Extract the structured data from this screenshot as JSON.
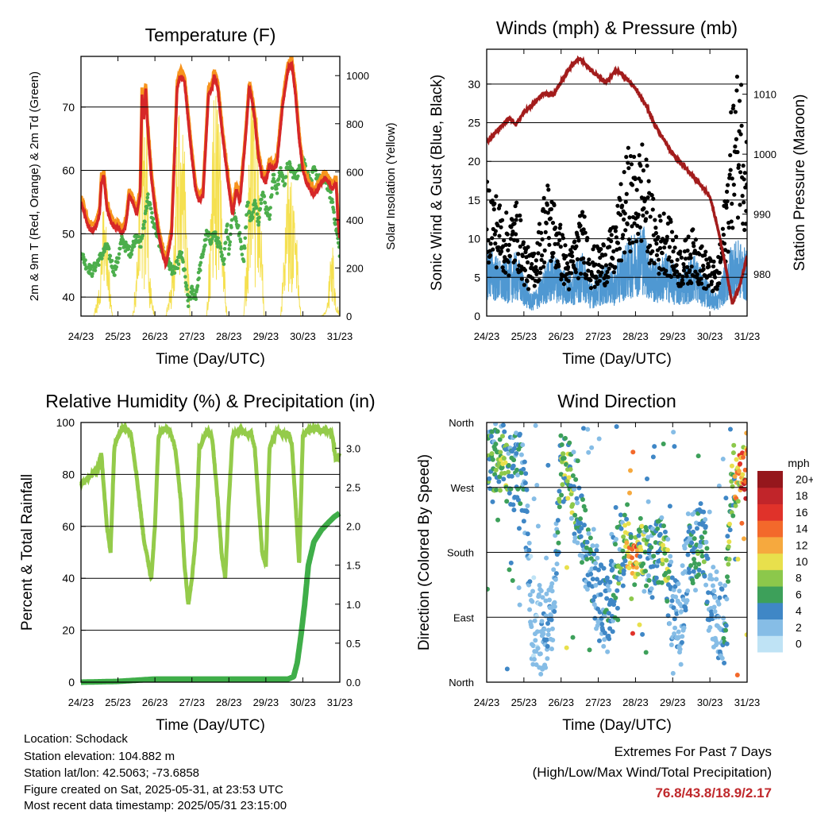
{
  "panels": {
    "temperature": {
      "title": "Temperature (F)",
      "xlabel": "Time (Day/UTC)",
      "ylabel_left": "2m & 9m T (Red, Orange) & 2m Td (Green)",
      "ylabel_right": "Solar Insolation (Yellow)"
    },
    "wind": {
      "title": "Winds (mph) & Pressure (mb)",
      "xlabel": "Time (Day/UTC)",
      "ylabel_left": "Sonic Wind & Gust (Blue, Black)",
      "ylabel_right": "Station Pressure (Maroon)"
    },
    "humidity": {
      "title": "Relative Humidity (%) & Precipitation (in)",
      "xlabel": "Time (Day/UTC)",
      "ylabel_left": "Percent & Total Rainfall"
    },
    "direction": {
      "title": "Wind Direction",
      "xlabel": "Time (Day/UTC)",
      "ylabel_left": "Direction (Colored By Speed)",
      "colorbar_title": "mph"
    }
  },
  "station": {
    "location": "Location: Schodack",
    "elevation": "Station elevation: 104.882 m",
    "latlon": "Station lat/lon: 42.5063; -73.6858",
    "created": "Figure created on Sat, 2025-05-31, at 23:53 UTC",
    "recent": "Most recent data timestamp: 2025/05/31 23:15:00"
  },
  "extremes": {
    "line1": "Extremes For Past 7 Days",
    "line2": "(High/Low/Max Wind/Total Precipitation)",
    "values": "76.8/43.8/18.9/2.17"
  },
  "colors": {
    "temp2m": "#d62728",
    "temp9m": "#f7941d",
    "dewpoint": "#4cae4c",
    "solar": "#f5e050",
    "gust": "#000000",
    "wind": "#4f98d2",
    "pressure": "#a31c1c",
    "rh": "#94cb4a",
    "rain": "#3fae49"
  },
  "chart_data": [
    {
      "type": "line",
      "title": "Temperature (F)",
      "xlabel": "Time (Day/UTC)",
      "ylabel": "2m & 9m T (Red, Orange) & 2m Td (Green)",
      "y2label": "Solar Insolation (Yellow)",
      "x_ticks": [
        "24/23",
        "25/23",
        "26/23",
        "27/23",
        "28/23",
        "29/23",
        "30/23",
        "31/23"
      ],
      "ylim": [
        37,
        78
      ],
      "y_ticks": [
        40,
        50,
        60,
        70
      ],
      "y2lim": [
        0,
        1080
      ],
      "y2_ticks": [
        0,
        200,
        400,
        600,
        800,
        1000
      ],
      "grid": "horizontal",
      "series": [
        {
          "name": "2m & 9m T (Red, Orange)",
          "axis": "left",
          "x": [
            0,
            0.1,
            0.2,
            0.3,
            0.4,
            0.5,
            0.55,
            0.62,
            0.7,
            0.8,
            0.9,
            1.0,
            1.1,
            1.2,
            1.25,
            1.3,
            1.4,
            1.5,
            1.6,
            1.65,
            1.7,
            1.75,
            1.8,
            1.9,
            2.0,
            2.1,
            2.2,
            2.3,
            2.45,
            2.55,
            2.6,
            2.7,
            2.8,
            2.9,
            3.0,
            3.1,
            3.2,
            3.3,
            3.45,
            3.55,
            3.6,
            3.7,
            3.8,
            3.9,
            4.0,
            4.1,
            4.2,
            4.3,
            4.45,
            4.55,
            4.6,
            4.7,
            4.8,
            4.9,
            5.0,
            5.1,
            5.2,
            5.3,
            5.45,
            5.55,
            5.6,
            5.7,
            5.8,
            5.9,
            6.0,
            6.1,
            6.2,
            6.3,
            6.4,
            6.5,
            6.6,
            6.7,
            6.8,
            6.9,
            6.95,
            7.0
          ],
          "y": [
            55,
            53,
            51,
            50.5,
            51,
            53,
            58,
            59,
            54,
            52,
            51,
            51,
            50,
            51,
            53,
            56,
            55,
            53,
            56,
            72,
            68,
            73,
            67,
            59,
            54,
            50,
            47,
            45,
            50,
            65,
            73,
            75,
            74,
            68,
            62,
            57,
            55,
            56,
            72,
            73,
            75,
            73,
            67,
            62,
            57,
            53,
            57,
            55,
            65,
            73,
            72,
            68,
            62,
            59,
            58,
            61,
            60,
            61,
            70,
            74,
            76,
            77,
            72,
            65,
            60,
            58,
            57,
            56,
            57,
            58,
            59,
            58,
            57,
            58,
            52,
            49
          ]
        },
        {
          "name": "2m Td (Green)",
          "axis": "left",
          "x": [
            0,
            0.15,
            0.3,
            0.5,
            0.7,
            0.9,
            1.0,
            1.1,
            1.2,
            1.35,
            1.5,
            1.6,
            1.7,
            1.8,
            1.95,
            2.1,
            2.3,
            2.5,
            2.6,
            2.7,
            2.8,
            2.9,
            3.0,
            3.1,
            3.2,
            3.3,
            3.4,
            3.5,
            3.6,
            3.75,
            3.85,
            3.95,
            4.0,
            4.1,
            4.25,
            4.4,
            4.5,
            4.6,
            4.7,
            4.8,
            4.9,
            5.0,
            5.1,
            5.2,
            5.3,
            5.4,
            5.5,
            5.6,
            5.7,
            5.8,
            5.9,
            6.0,
            6.1,
            6.2,
            6.3,
            6.4,
            6.5,
            6.6,
            6.7,
            6.8,
            6.9,
            7.0
          ],
          "y": [
            47,
            45,
            44,
            46,
            48,
            44,
            46,
            49,
            48,
            47,
            50,
            48,
            51,
            56,
            52,
            49,
            46,
            44,
            45,
            47,
            44,
            39,
            41,
            40,
            44,
            47,
            50,
            49,
            50,
            48,
            45,
            52,
            47,
            54,
            51,
            46,
            55,
            52,
            55,
            52,
            57,
            54,
            53,
            59,
            57,
            60,
            58,
            61,
            60,
            59,
            60,
            62,
            60,
            58,
            60,
            59,
            58,
            59,
            57,
            55,
            51,
            47
          ]
        },
        {
          "name": "Solar Insolation (Yellow)",
          "axis": "right",
          "x": [
            0,
            0.35,
            0.5,
            0.62,
            0.72,
            0.85,
            1.1,
            1.4,
            1.55,
            1.62,
            1.7,
            1.78,
            1.85,
            1.92,
            2.0,
            2.3,
            2.5,
            2.62,
            2.7,
            2.78,
            2.85,
            2.95,
            3.1,
            3.4,
            3.5,
            3.6,
            3.7,
            3.78,
            3.85,
            3.95,
            4.1,
            4.4,
            4.5,
            4.6,
            4.7,
            4.78,
            4.85,
            4.95,
            5.1,
            5.4,
            5.5,
            5.6,
            5.7,
            5.78,
            5.85,
            5.95,
            6.1,
            6.5,
            6.65,
            6.8,
            6.9,
            7.0
          ],
          "y": [
            0,
            0,
            150,
            580,
            300,
            0,
            0,
            0,
            320,
            1060,
            700,
            900,
            200,
            80,
            0,
            0,
            260,
            880,
            1000,
            760,
            520,
            0,
            0,
            0,
            420,
            990,
            880,
            820,
            300,
            0,
            0,
            0,
            420,
            960,
            760,
            900,
            600,
            0,
            0,
            0,
            300,
            620,
            560,
            590,
            280,
            0,
            0,
            0,
            30,
            350,
            80,
            0
          ]
        }
      ]
    },
    {
      "type": "line",
      "title": "Winds (mph) & Pressure (mb)",
      "xlabel": "Time (Day/UTC)",
      "ylabel": "Sonic Wind & Gust (Blue, Black)",
      "y2label": "Station Pressure (Maroon)",
      "x_ticks": [
        "24/23",
        "25/23",
        "26/23",
        "27/23",
        "28/23",
        "29/23",
        "30/23",
        "31/23"
      ],
      "ylim": [
        0,
        34.5
      ],
      "y_ticks": [
        0,
        5,
        10,
        15,
        20,
        25,
        30
      ],
      "y2lim": [
        973,
        1017.5
      ],
      "y2_ticks": [
        980,
        990,
        1000,
        1010
      ],
      "grid": "horizontal",
      "series": [
        {
          "name": "Sonic Wind (Blue)",
          "axis": "left",
          "x": [
            0,
            0.2,
            0.4,
            0.6,
            0.8,
            1.0,
            1.2,
            1.4,
            1.6,
            1.8,
            2.0,
            2.2,
            2.4,
            2.6,
            2.8,
            3.0,
            3.2,
            3.4,
            3.6,
            3.8,
            4.0,
            4.2,
            4.4,
            4.6,
            4.8,
            5.0,
            5.2,
            5.4,
            5.6,
            5.8,
            6.0,
            6.2,
            6.4,
            6.6,
            6.8,
            7.0
          ],
          "y": [
            7,
            6,
            5,
            5.5,
            6,
            4,
            2,
            3,
            5,
            6,
            5,
            4,
            5,
            6,
            3,
            4,
            5,
            4,
            6,
            7,
            8,
            9,
            6,
            5,
            6,
            5,
            4,
            5,
            6,
            4,
            3,
            2,
            5,
            7,
            7,
            6
          ]
        },
        {
          "name": "Gust (Black)",
          "axis": "left",
          "x": [
            0,
            0.2,
            0.4,
            0.6,
            0.8,
            1.0,
            1.2,
            1.4,
            1.6,
            1.8,
            2.0,
            2.2,
            2.4,
            2.6,
            2.8,
            3.0,
            3.2,
            3.4,
            3.6,
            3.8,
            4.0,
            4.2,
            4.4,
            4.6,
            4.8,
            5.0,
            5.2,
            5.4,
            5.6,
            5.8,
            6.0,
            6.2,
            6.4,
            6.6,
            6.8,
            7.0
          ],
          "y": [
            14,
            13,
            11,
            10,
            12,
            8,
            6,
            9,
            14,
            12,
            9,
            6,
            9,
            11,
            7,
            7,
            8,
            9,
            13,
            17,
            16,
            18,
            13,
            10,
            11,
            9,
            7,
            8,
            9,
            7,
            6,
            5,
            12,
            22,
            26,
            20
          ]
        },
        {
          "name": "Station Pressure (Maroon)",
          "axis": "right",
          "x": [
            0,
            0.3,
            0.6,
            0.8,
            1.0,
            1.2,
            1.5,
            1.8,
            2.0,
            2.3,
            2.5,
            2.8,
            3.0,
            3.2,
            3.5,
            3.7,
            4.0,
            4.3,
            4.5,
            4.8,
            5.0,
            5.3,
            5.6,
            6.0,
            6.2,
            6.4,
            6.6,
            6.8,
            7.0
          ],
          "y": [
            1002,
            1004,
            1006,
            1005,
            1007,
            1008,
            1010,
            1010,
            1012,
            1015,
            1016,
            1014,
            1013,
            1012,
            1014,
            1013,
            1011,
            1008,
            1005,
            1002,
            1000,
            998,
            996,
            993,
            988,
            982,
            975,
            978,
            983
          ]
        }
      ]
    },
    {
      "type": "line",
      "title": "Relative Humidity (%) & Precipitation (in)",
      "xlabel": "Time (Day/UTC)",
      "ylabel": "Percent & Total Rainfall",
      "x_ticks": [
        "24/23",
        "25/23",
        "26/23",
        "27/23",
        "28/23",
        "29/23",
        "30/23",
        "31/23"
      ],
      "ylim": [
        0,
        100
      ],
      "y_ticks": [
        0,
        20,
        40,
        60,
        80,
        100
      ],
      "y2lim": [
        0,
        3.33
      ],
      "y2_ticks": [
        0.0,
        0.5,
        1.0,
        1.5,
        2.0,
        2.5,
        3.0
      ],
      "grid": "horizontal",
      "series": [
        {
          "name": "Relative Humidity",
          "axis": "left",
          "x": [
            0,
            0.15,
            0.3,
            0.45,
            0.55,
            0.7,
            0.8,
            0.9,
            1.0,
            1.1,
            1.2,
            1.35,
            1.5,
            1.7,
            1.9,
            2.0,
            2.1,
            2.25,
            2.4,
            2.55,
            2.7,
            2.8,
            2.9,
            3.0,
            3.1,
            3.2,
            3.4,
            3.55,
            3.7,
            3.8,
            3.9,
            4.0,
            4.1,
            4.3,
            4.5,
            4.6,
            4.7,
            4.8,
            4.9,
            5.0,
            5.1,
            5.3,
            5.5,
            5.6,
            5.7,
            5.8,
            5.9,
            6.0,
            6.1,
            6.3,
            6.5,
            6.7,
            6.8,
            6.9,
            7.0
          ],
          "y": [
            76,
            78,
            80,
            82,
            88,
            60,
            50,
            90,
            95,
            97,
            98,
            96,
            80,
            55,
            40,
            60,
            95,
            98,
            97,
            90,
            70,
            45,
            30,
            40,
            55,
            90,
            97,
            94,
            70,
            50,
            40,
            70,
            95,
            97,
            95,
            96,
            90,
            70,
            50,
            45,
            90,
            97,
            95,
            96,
            92,
            70,
            45,
            95,
            97,
            98,
            97,
            97,
            95,
            85,
            88
          ]
        },
        {
          "name": "Total Rainfall",
          "axis": "right",
          "x": [
            0,
            1.0,
            2.0,
            3.0,
            4.0,
            5.0,
            5.6,
            5.75,
            5.85,
            5.95,
            6.05,
            6.15,
            6.3,
            6.5,
            6.7,
            6.85,
            7.0
          ],
          "y": [
            0,
            0.01,
            0.04,
            0.04,
            0.04,
            0.04,
            0.04,
            0.07,
            0.25,
            0.6,
            1.0,
            1.5,
            1.8,
            1.95,
            2.05,
            2.12,
            2.17
          ]
        }
      ]
    },
    {
      "type": "scatter",
      "title": "Wind Direction",
      "xlabel": "Time (Day/UTC)",
      "ylabel": "Direction (Colored By Speed)",
      "x_ticks": [
        "24/23",
        "25/23",
        "26/23",
        "27/23",
        "28/23",
        "29/23",
        "30/23",
        "31/23"
      ],
      "y_ticks": [
        "North",
        "East",
        "South",
        "West",
        "North"
      ],
      "ylim": [
        0,
        360
      ],
      "grid": "horizontal",
      "colorbar": {
        "title": "mph",
        "labels": [
          "0",
          "2",
          "4",
          "6",
          "8",
          "10",
          "12",
          "14",
          "16",
          "18",
          "20+"
        ],
        "colors": [
          "#bfe3f5",
          "#86bde6",
          "#3f87c6",
          "#3da05a",
          "#8cc84b",
          "#e8e04c",
          "#f6a93e",
          "#f3692b",
          "#e0322a",
          "#c1252a",
          "#95171c"
        ]
      },
      "series": [
        {
          "name": "Direction",
          "x": [
            0.1,
            0.3,
            0.5,
            0.6,
            1.0,
            1.2,
            1.4,
            1.6,
            1.8,
            2.0,
            2.2,
            2.4,
            2.6,
            2.8,
            3.0,
            3.2,
            3.4,
            3.6,
            3.8,
            4.0,
            4.2,
            4.4,
            4.6,
            4.8,
            5.0,
            5.2,
            5.4,
            5.6,
            5.8,
            6.0,
            6.2,
            6.4,
            6.6,
            6.8,
            7.0
          ],
          "y": [
            300,
            305,
            300,
            295,
            290,
            90,
            75,
            60,
            100,
            300,
            285,
            250,
            200,
            170,
            120,
            95,
            125,
            180,
            190,
            175,
            185,
            170,
            185,
            175,
            100,
            70,
            180,
            175,
            200,
            120,
            90,
            80,
            275,
            285,
            290
          ],
          "speed": [
            6,
            7,
            7,
            5,
            4,
            2,
            2,
            3,
            2,
            7,
            8,
            5,
            4,
            5,
            3,
            4,
            4,
            6,
            10,
            12,
            8,
            4,
            5,
            9,
            3,
            2,
            4,
            5,
            6,
            3,
            3,
            4,
            9,
            12,
            14
          ]
        }
      ]
    }
  ]
}
